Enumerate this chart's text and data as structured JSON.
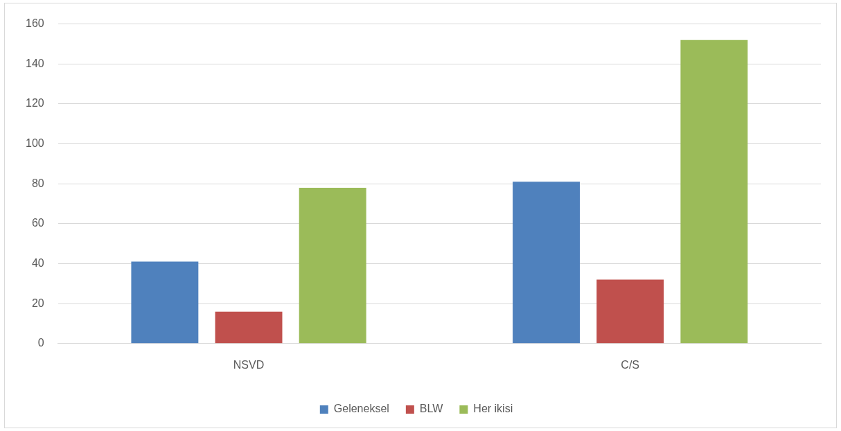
{
  "chart_data": {
    "type": "bar",
    "categories": [
      "NSVD",
      "C/S"
    ],
    "series": [
      {
        "name": "Geleneksel",
        "color": "#4f81bd",
        "values": [
          41,
          81
        ]
      },
      {
        "name": "BLW",
        "color": "#c0504d",
        "values": [
          16,
          32
        ]
      },
      {
        "name": "Her ikisi",
        "color": "#9bbb59",
        "values": [
          78,
          152
        ]
      }
    ],
    "ylim": [
      0,
      160
    ],
    "yticks": [
      0,
      20,
      40,
      60,
      80,
      100,
      120,
      140,
      160
    ],
    "grid": "y",
    "legend": "bottom"
  }
}
